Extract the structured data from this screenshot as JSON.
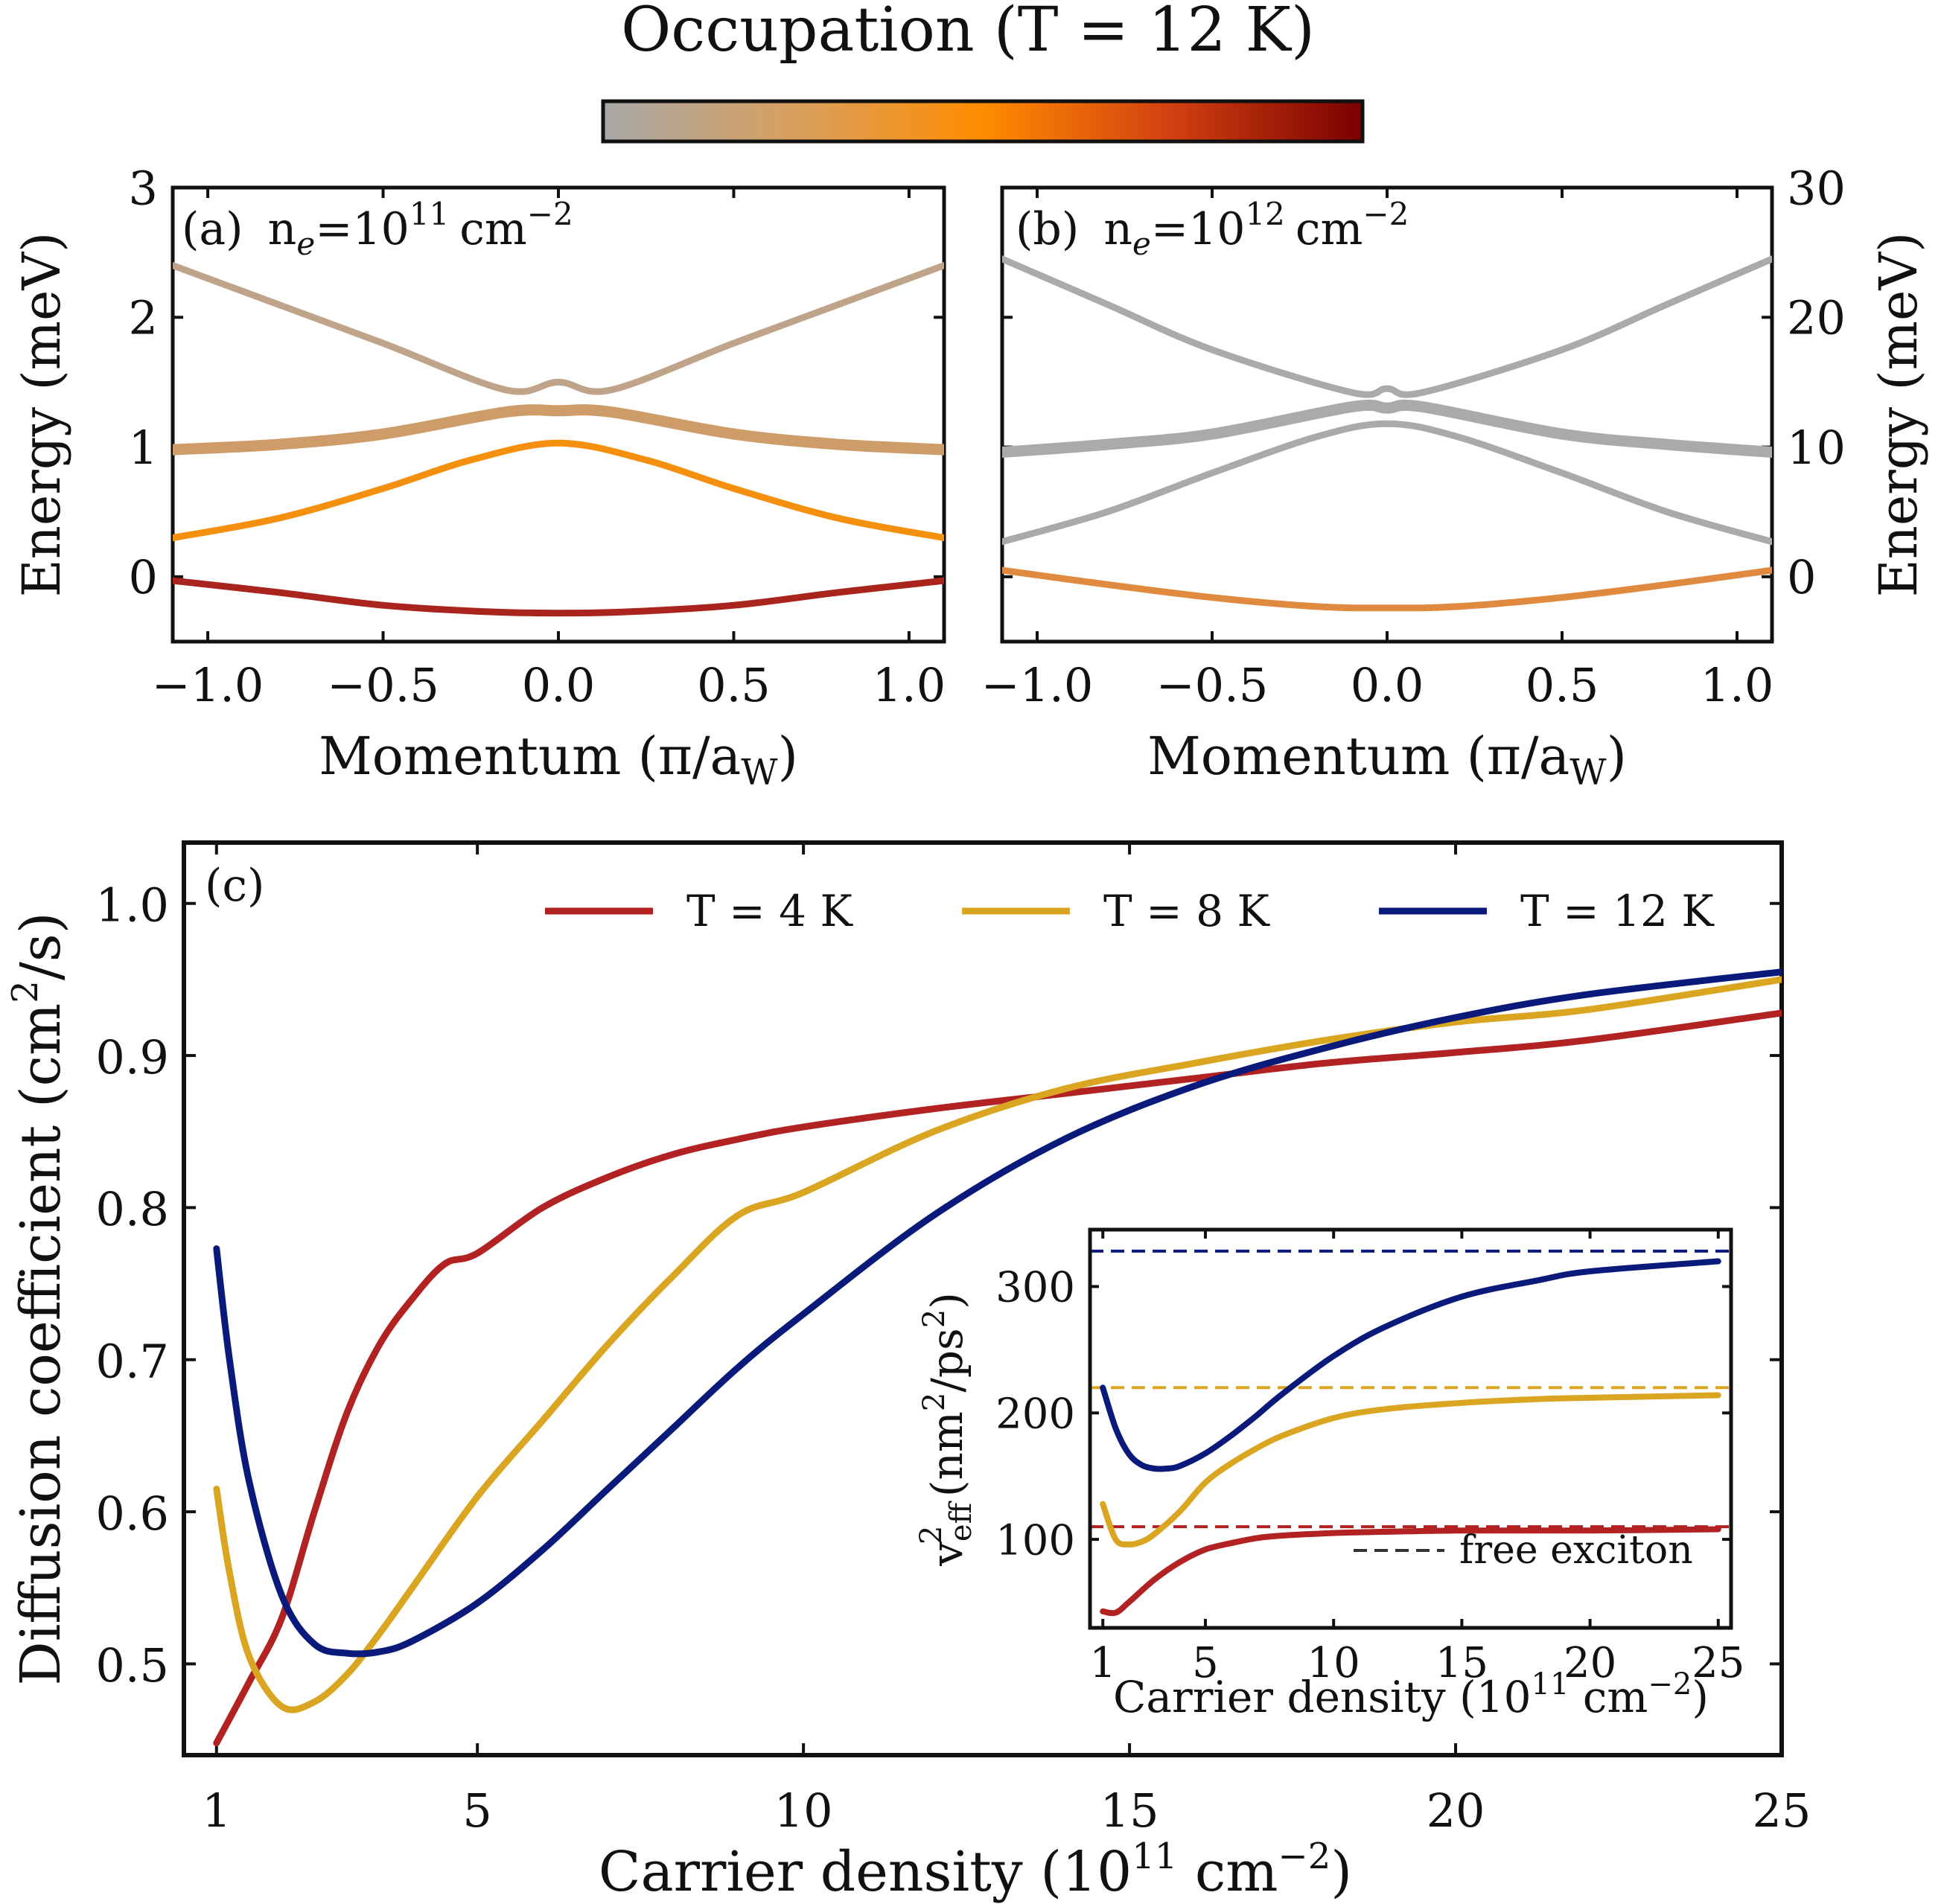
{
  "colorbar": {
    "title": "Occupation (T = 12 K)",
    "stops": [
      "#a8a8a8",
      "#d8a060",
      "#ff8c00",
      "#d04010",
      "#7a0000"
    ]
  },
  "chart_data": [
    {
      "id": "a",
      "type": "line",
      "panel_label": "(a)",
      "title": "(a) n_e=10^11 cm^-2",
      "annotation": {
        "prefix": "(a)",
        "base": "n",
        "sub": "e",
        "eq": "=10",
        "sup": "11",
        "unit": "cm",
        "unit_sup": "−2"
      },
      "xlabel": "Momentum (π/a_W)",
      "xlabel_parts": {
        "main": "Momentum (π/a",
        "sub": "W",
        "close": ")"
      },
      "ylabel": "Energy (meV)",
      "xlim": [
        -1.1,
        1.1
      ],
      "ylim": [
        -0.5,
        3
      ],
      "xticks": [
        -1.0,
        -0.5,
        0.0,
        0.5,
        1.0
      ],
      "xtick_labels": [
        "−1.0",
        "−0.5",
        "0.0",
        "0.5",
        "1.0"
      ],
      "yticks": [
        0,
        1,
        2,
        3
      ],
      "ytick_labels": [
        "0",
        "1",
        "2",
        "3"
      ],
      "series": [
        {
          "name": "band 1",
          "color": "#a8241c",
          "x": [
            -1.1,
            -0.8,
            -0.5,
            -0.2,
            0.0,
            0.2,
            0.5,
            0.8,
            1.1
          ],
          "y": [
            -0.03,
            -0.12,
            -0.22,
            -0.27,
            -0.28,
            -0.27,
            -0.22,
            -0.12,
            -0.03
          ]
        },
        {
          "name": "band 2",
          "color": "#f5900f",
          "x": [
            -1.1,
            -0.8,
            -0.5,
            -0.25,
            0.0,
            0.25,
            0.5,
            0.8,
            1.1
          ],
          "y": [
            0.3,
            0.45,
            0.68,
            0.9,
            1.03,
            0.9,
            0.68,
            0.45,
            0.3
          ]
        },
        {
          "name": "band 3",
          "color": "#cd9c68",
          "x": [
            -1.1,
            -0.8,
            -0.5,
            -0.15,
            0.0,
            0.15,
            0.5,
            0.8,
            1.1
          ],
          "y": [
            0.98,
            1.02,
            1.1,
            1.27,
            1.28,
            1.27,
            1.1,
            1.02,
            0.98
          ]
        },
        {
          "name": "band 4",
          "color": "#c0a48a",
          "x": [
            -1.1,
            -0.8,
            -0.5,
            -0.15,
            0.0,
            0.15,
            0.5,
            0.8,
            1.1
          ],
          "y": [
            2.4,
            2.1,
            1.8,
            1.44,
            1.5,
            1.44,
            1.8,
            2.1,
            2.4
          ]
        }
      ]
    },
    {
      "id": "b",
      "type": "line",
      "panel_label": "(b)",
      "title": "(b) n_e=10^12 cm^-2",
      "annotation": {
        "prefix": "(b)",
        "base": "n",
        "sub": "e",
        "eq": "=10",
        "sup": "12",
        "unit": "cm",
        "unit_sup": "−2"
      },
      "xlabel": "Momentum (π/a_W)",
      "xlabel_parts": {
        "main": "Momentum (π/a",
        "sub": "W",
        "close": ")"
      },
      "ylabel": "Energy (meV)",
      "xlim": [
        -1.1,
        1.1
      ],
      "ylim": [
        -5,
        30
      ],
      "xticks": [
        -1.0,
        -0.5,
        0.0,
        0.5,
        1.0
      ],
      "xtick_labels": [
        "−1.0",
        "−0.5",
        "0.0",
        "0.5",
        "1.0"
      ],
      "yticks": [
        0,
        10,
        20,
        30
      ],
      "ytick_labels": [
        "0",
        "10",
        "20",
        "30"
      ],
      "series": [
        {
          "name": "band 1",
          "color": "#e08a40",
          "x": [
            -1.1,
            -0.8,
            -0.5,
            -0.2,
            0.0,
            0.2,
            0.5,
            0.8,
            1.1
          ],
          "y": [
            0.5,
            -0.6,
            -1.6,
            -2.3,
            -2.4,
            -2.3,
            -1.6,
            -0.6,
            0.5
          ]
        },
        {
          "name": "band 2",
          "color": "#aaaaaa",
          "x": [
            -1.1,
            -0.8,
            -0.5,
            -0.2,
            0.0,
            0.2,
            0.5,
            0.8,
            1.1
          ],
          "y": [
            2.7,
            5.0,
            8.0,
            10.8,
            11.8,
            10.8,
            8.0,
            5.0,
            2.7
          ]
        },
        {
          "name": "band 3",
          "color": "#aaaaaa",
          "x": [
            -1.1,
            -0.8,
            -0.5,
            -0.1,
            0.0,
            0.1,
            0.5,
            0.8,
            1.1
          ],
          "y": [
            9.6,
            10.2,
            11.0,
            13.1,
            13.0,
            13.1,
            11.0,
            10.2,
            9.6
          ]
        },
        {
          "name": "band 4",
          "color": "#aaaaaa",
          "x": [
            -1.1,
            -0.8,
            -0.5,
            -0.1,
            0.0,
            0.1,
            0.5,
            0.8,
            1.1
          ],
          "y": [
            24.5,
            21.0,
            17.5,
            14.2,
            14.5,
            14.2,
            17.5,
            21.0,
            24.5
          ]
        }
      ]
    },
    {
      "id": "c",
      "type": "line",
      "panel_label": "(c)",
      "xlabel": "Carrier density (10^11 cm^-2)",
      "xlabel_parts": {
        "main": "Carrier density (10",
        "sup": "11",
        "unit": " cm",
        "unit_sup": "−2",
        "close": ")"
      },
      "ylabel": "Diffusion coefficient (cm^2/s)",
      "ylabel_parts": {
        "main": "Diffusion coefficient (cm",
        "sup": "2",
        "close": "/s)"
      },
      "xlim": [
        0.5,
        25
      ],
      "ylim": [
        0.44,
        1.04
      ],
      "xticks": [
        1,
        5,
        10,
        15,
        20,
        25
      ],
      "xtick_labels": [
        "1",
        "5",
        "10",
        "15",
        "20",
        "25"
      ],
      "yticks": [
        0.5,
        0.6,
        0.7,
        0.8,
        0.9,
        1.0
      ],
      "ytick_labels": [
        "0.5",
        "0.6",
        "0.7",
        "0.8",
        "0.9",
        "1.0"
      ],
      "legend": {
        "position": "top-right",
        "entries": [
          "T = 4 K",
          "T = 8 K",
          "T = 12 K"
        ]
      },
      "series": [
        {
          "name": "T = 4 K",
          "color": "#b22222",
          "x": [
            1,
            1.5,
            2,
            2.5,
            3,
            3.5,
            4,
            4.5,
            5,
            6,
            7,
            8,
            9,
            10,
            12,
            14,
            16,
            18,
            20,
            22,
            25
          ],
          "y": [
            0.448,
            0.488,
            0.53,
            0.6,
            0.665,
            0.71,
            0.74,
            0.763,
            0.77,
            0.8,
            0.82,
            0.835,
            0.845,
            0.853,
            0.865,
            0.875,
            0.885,
            0.895,
            0.902,
            0.91,
            0.928
          ]
        },
        {
          "name": "T = 8 K",
          "color": "#daa520",
          "x": [
            1,
            1.2,
            1.5,
            2,
            2.5,
            3,
            3.5,
            4,
            5,
            6,
            7,
            8,
            9,
            10,
            12,
            14,
            16,
            18,
            20,
            22,
            25
          ],
          "y": [
            0.615,
            0.56,
            0.505,
            0.472,
            0.475,
            0.493,
            0.52,
            0.55,
            0.61,
            0.66,
            0.71,
            0.755,
            0.795,
            0.81,
            0.85,
            0.878,
            0.895,
            0.91,
            0.922,
            0.93,
            0.95
          ]
        },
        {
          "name": "T = 12 K",
          "color": "#0a1a7a",
          "x": [
            1,
            1.2,
            1.5,
            2,
            2.5,
            3,
            3.5,
            4,
            5,
            6,
            7,
            8,
            9,
            10,
            12,
            14,
            16,
            18,
            20,
            22,
            25
          ],
          "y": [
            0.773,
            0.7,
            0.62,
            0.545,
            0.513,
            0.507,
            0.508,
            0.515,
            0.54,
            0.575,
            0.615,
            0.655,
            0.695,
            0.73,
            0.795,
            0.845,
            0.88,
            0.905,
            0.925,
            0.94,
            0.955
          ]
        }
      ]
    },
    {
      "id": "inset",
      "type": "line",
      "xlabel": "Carrier density (10^11 cm^-2)",
      "xlabel_parts": {
        "main": "Carrier density (10",
        "sup": "11",
        "unit": " cm",
        "unit_sup": "−2",
        "close": ")"
      },
      "ylabel": "v_eff^2 (nm^2/ps^2)",
      "ylabel_parts": {
        "base": "v",
        "sub": "eff",
        "sup": "2",
        "main": " (nm",
        "sup2": "2",
        "mid": "/ps",
        "sup3": "2",
        "close": ")"
      },
      "xlim": [
        0.5,
        25.5
      ],
      "ylim": [
        30,
        345
      ],
      "xticks": [
        1,
        5,
        10,
        15,
        20,
        25
      ],
      "xtick_labels": [
        "1",
        "5",
        "10",
        "15",
        "20",
        "25"
      ],
      "yticks": [
        100,
        200,
        300
      ],
      "ytick_labels": [
        "100",
        "200",
        "300"
      ],
      "legend": {
        "position": "bottom-right",
        "entries": [
          "free exciton"
        ]
      },
      "reference_lines": [
        {
          "label": "free exciton",
          "color": "#0a1a7a",
          "y": 328
        },
        {
          "label": "free exciton",
          "color": "#daa520",
          "y": 220
        },
        {
          "label": "free exciton",
          "color": "#b22222",
          "y": 110
        }
      ],
      "series": [
        {
          "name": "T = 4 K",
          "color": "#b22222",
          "x": [
            1,
            1.5,
            2,
            3,
            4,
            5,
            6,
            7,
            8,
            10,
            12,
            15,
            20,
            25
          ],
          "y": [
            43,
            42,
            50,
            68,
            82,
            92,
            97,
            101,
            103,
            105,
            106,
            107,
            107,
            108
          ]
        },
        {
          "name": "T = 8 K",
          "color": "#daa520",
          "x": [
            1,
            1.5,
            2,
            2.5,
            3,
            4,
            5,
            6,
            7,
            8,
            10,
            12,
            15,
            18,
            20,
            25
          ],
          "y": [
            128,
            100,
            96,
            98,
            104,
            122,
            145,
            160,
            172,
            182,
            196,
            203,
            208,
            211,
            212,
            214
          ]
        },
        {
          "name": "T = 12 K",
          "color": "#0a1a7a",
          "x": [
            1,
            1.5,
            2,
            2.5,
            3,
            3.5,
            4,
            5,
            6,
            7,
            8,
            10,
            12,
            15,
            18,
            20,
            25
          ],
          "y": [
            220,
            188,
            168,
            159,
            156,
            156,
            158,
            168,
            182,
            198,
            215,
            245,
            268,
            292,
            305,
            312,
            320
          ]
        }
      ]
    }
  ]
}
